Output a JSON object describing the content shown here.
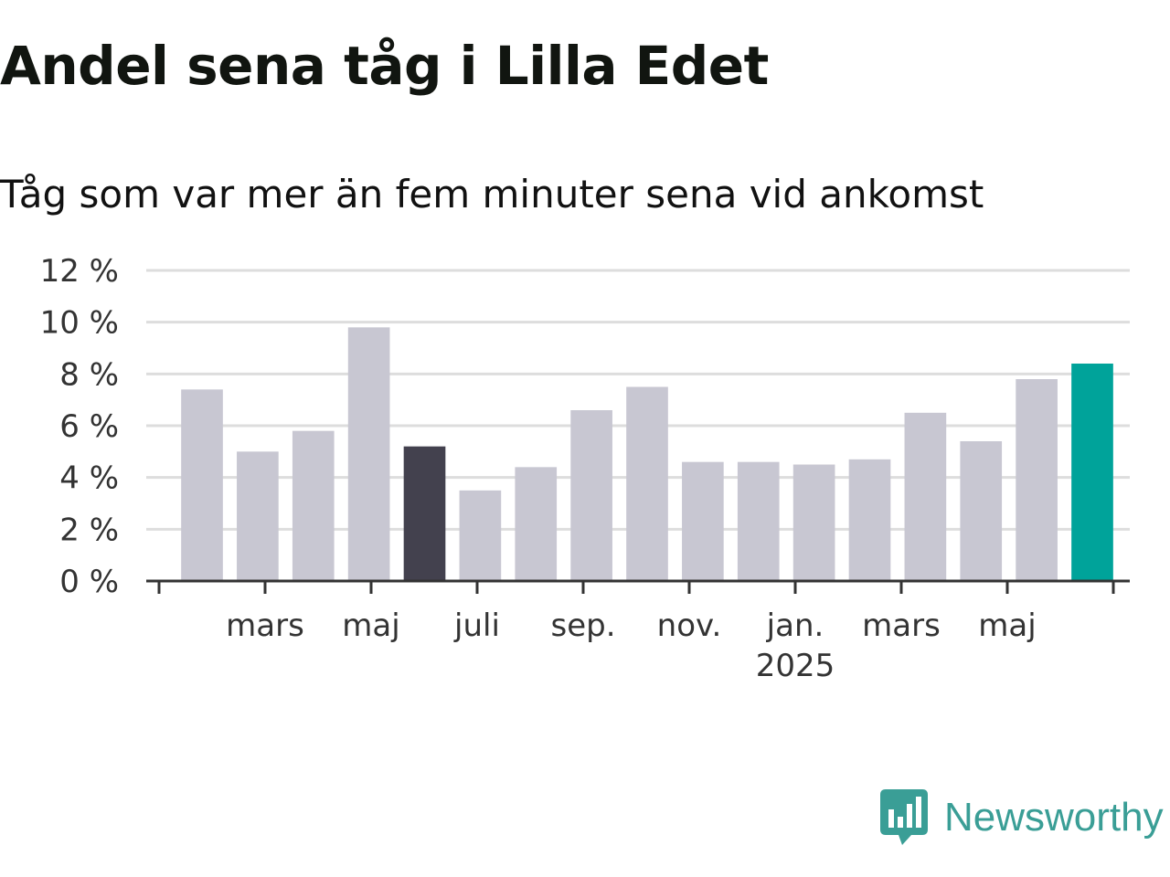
{
  "chart_data": {
    "type": "bar",
    "title": "Andel sena tåg i Lilla Edet",
    "subtitle": "Tåg som var mer än fem minuter sena vid ankomst",
    "xlabel": "",
    "ylabel": "",
    "ylim": [
      0,
      12
    ],
    "y_ticks": [
      "0 %",
      "2 %",
      "4 %",
      "6 %",
      "8 %",
      "10 %",
      "12 %"
    ],
    "grid": true,
    "x_tick_labels": [
      {
        "label": "mars",
        "year": ""
      },
      {
        "label": "maj",
        "year": ""
      },
      {
        "label": "juli",
        "year": ""
      },
      {
        "label": "sep.",
        "year": ""
      },
      {
        "label": "nov.",
        "year": ""
      },
      {
        "label": "jan.",
        "year": "2025"
      },
      {
        "label": "mars",
        "year": ""
      },
      {
        "label": "maj",
        "year": ""
      }
    ],
    "values": [
      7.4,
      5.0,
      5.8,
      9.8,
      5.2,
      3.5,
      4.4,
      6.6,
      7.5,
      4.6,
      4.6,
      4.5,
      4.7,
      6.5,
      5.4,
      7.8,
      8.4
    ],
    "colors": {
      "default": "#c8c7d2",
      "highlight_dark": "#43414e",
      "highlight_latest": "#00a39a"
    },
    "dark_index": 4,
    "latest_index": 16
  },
  "logo": {
    "text": "Newsworthy",
    "color": "#3a9e96"
  }
}
